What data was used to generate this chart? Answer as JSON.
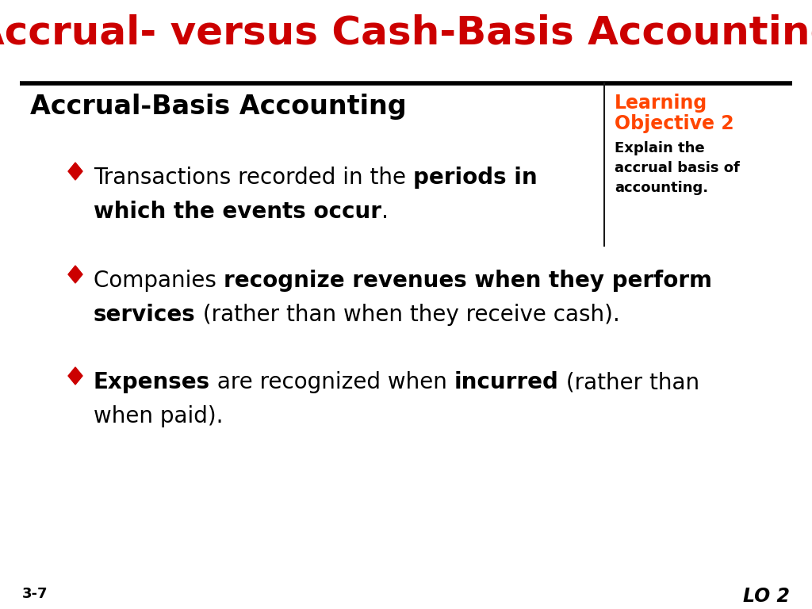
{
  "title": "Accrual- versus Cash-Basis Accounting",
  "title_color": "#CC0000",
  "title_fontsize": 36,
  "bg_color": "#FFFFFF",
  "separator_color": "#000000",
  "section_title": "Accrual-Basis Accounting",
  "section_title_fontsize": 24,
  "section_title_color": "#000000",
  "bullet_color": "#CC0000",
  "lo_title_line1": "Learning",
  "lo_title_line2": "Objective 2",
  "lo_title_color": "#FF4500",
  "lo_title_fontsize": 17,
  "lo_body": "Explain the\naccrual basis of\naccounting.",
  "lo_body_fontsize": 13,
  "lo_body_color": "#000000",
  "lo_line_color": "#1a1a1a",
  "page_num": "3-7",
  "page_num_fontsize": 13,
  "lo_label": "LO 2",
  "lo_label_fontsize": 17,
  "text_fontsize": 20,
  "fig_width": 10.24,
  "fig_height": 7.68,
  "dpi": 100
}
